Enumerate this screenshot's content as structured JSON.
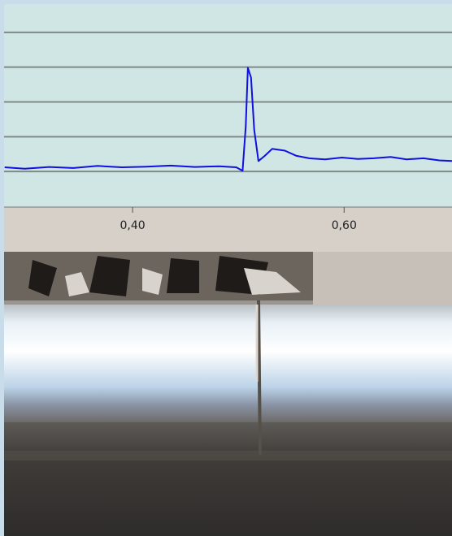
{
  "chart_data": {
    "type": "line",
    "x": [
      0.279,
      0.298,
      0.321,
      0.344,
      0.367,
      0.39,
      0.413,
      0.436,
      0.459,
      0.482,
      0.498,
      0.504,
      0.507,
      0.509,
      0.512,
      0.515,
      0.519,
      0.525,
      0.532,
      0.544,
      0.555,
      0.567,
      0.582,
      0.598,
      0.613,
      0.628,
      0.644,
      0.659,
      0.675,
      0.69,
      0.702
    ],
    "series": [
      {
        "color": "#1010e0",
        "values": [
          1.12,
          1.08,
          1.13,
          1.1,
          1.16,
          1.12,
          1.14,
          1.17,
          1.13,
          1.15,
          1.12,
          1.02,
          2.3,
          3.98,
          3.7,
          2.2,
          1.3,
          1.45,
          1.65,
          1.6,
          1.45,
          1.38,
          1.35,
          1.4,
          1.36,
          1.38,
          1.42,
          1.35,
          1.38,
          1.32,
          1.3
        ]
      }
    ],
    "xlim": [
      0.2785,
      0.702
    ],
    "xticks": [
      {
        "value": 0.4,
        "label": "0,40"
      },
      {
        "value": 0.6,
        "label": "0,60"
      }
    ],
    "ylim": [
      0,
      6
    ],
    "yticks": [
      1,
      2,
      3,
      4,
      5
    ],
    "grid": true
  }
}
